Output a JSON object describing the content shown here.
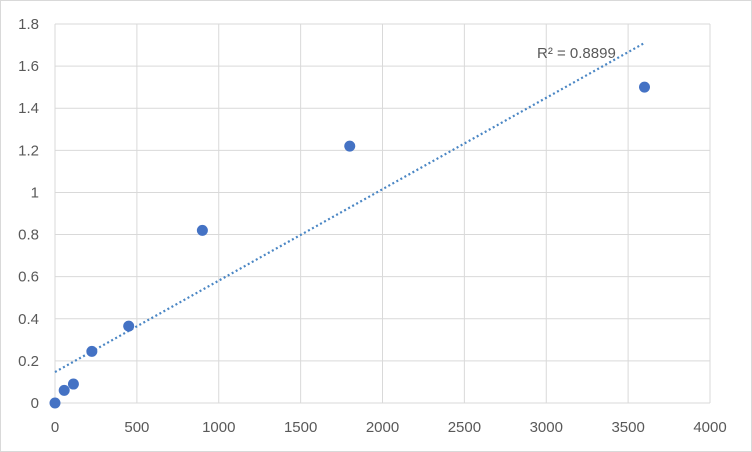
{
  "chart_data": {
    "type": "scatter",
    "title": "",
    "xlabel": "",
    "ylabel": "",
    "xlim": [
      0,
      4000
    ],
    "ylim": [
      0,
      1.8
    ],
    "x_ticks": [
      0,
      500,
      1000,
      1500,
      2000,
      2500,
      3000,
      3500,
      4000
    ],
    "y_ticks": [
      0,
      0.2,
      0.4,
      0.6,
      0.8,
      1,
      1.2,
      1.4,
      1.6,
      1.8
    ],
    "x_tick_labels": [
      "0",
      "500",
      "1000",
      "1500",
      "2000",
      "2500",
      "3000",
      "3500",
      "4000"
    ],
    "y_tick_labels": [
      "0",
      "0.2",
      "0.4",
      "0.6",
      "0.8",
      "1",
      "1.2",
      "1.4",
      "1.6",
      "1.8"
    ],
    "grid": true,
    "legend": "none",
    "series": [
      {
        "marker_color": "#4472c4",
        "points": [
          {
            "x": 0,
            "y": 0.0
          },
          {
            "x": 56.25,
            "y": 0.06
          },
          {
            "x": 112.5,
            "y": 0.09
          },
          {
            "x": 225,
            "y": 0.245
          },
          {
            "x": 450,
            "y": 0.365
          },
          {
            "x": 900,
            "y": 0.82
          },
          {
            "x": 1800,
            "y": 1.22
          },
          {
            "x": 3600,
            "y": 1.5
          }
        ]
      }
    ],
    "trendline": {
      "type": "linear",
      "style": "dotted",
      "color": "#4a86c4",
      "x_range": [
        0,
        3600
      ],
      "y_start": 0.147,
      "y_end": 1.71,
      "r_squared_label": "R² = 0.8899"
    }
  }
}
